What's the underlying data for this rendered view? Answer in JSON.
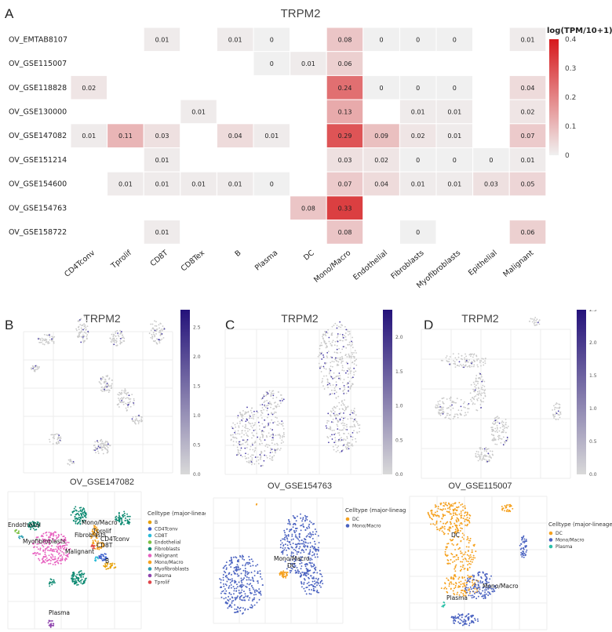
{
  "panels": {
    "A": "A",
    "B": "B",
    "C": "C",
    "D": "D"
  },
  "heatmap": {
    "title": "TRPM2",
    "colorbar_title": "log(TPM/10+1)",
    "colorbar_ticks": [
      "0.4",
      "0.3",
      "0.2",
      "0.1",
      "0"
    ],
    "colors": {
      "low": "#f0f0f0",
      "high": "#d7191c"
    }
  },
  "chart_data": {
    "type": "heatmap",
    "title": "TRPM2",
    "rows": [
      "OV_EMTAB8107",
      "OV_GSE115007",
      "OV_GSE118828",
      "OV_GSE130000",
      "OV_GSE147082",
      "OV_GSE151214",
      "OV_GSE154600",
      "OV_GSE154763",
      "OV_GSE158722"
    ],
    "columns": [
      "CD4Tconv",
      "Tprolif",
      "CD8T",
      "CD8Tex",
      "B",
      "Plasma",
      "DC",
      "Mono/Macro",
      "Endothelial",
      "Fibroblasts",
      "Myofibroblasts",
      "Epithelial",
      "Malignant"
    ],
    "values": [
      [
        null,
        null,
        0.01,
        null,
        0.01,
        0,
        null,
        0.08,
        0,
        0,
        0,
        null,
        0.01
      ],
      [
        null,
        null,
        null,
        null,
        null,
        0,
        0.01,
        0.06,
        null,
        null,
        null,
        null,
        null
      ],
      [
        0.02,
        null,
        null,
        null,
        null,
        null,
        null,
        0.24,
        0,
        0,
        0,
        null,
        0.04
      ],
      [
        null,
        null,
        null,
        0.01,
        null,
        null,
        null,
        0.13,
        null,
        0.01,
        0.01,
        null,
        0.02
      ],
      [
        0.01,
        0.11,
        0.03,
        null,
        0.04,
        0.01,
        null,
        0.29,
        0.09,
        0.02,
        0.01,
        null,
        0.07
      ],
      [
        null,
        null,
        0.01,
        null,
        null,
        null,
        null,
        0.03,
        0.02,
        0,
        0,
        0,
        0.01
      ],
      [
        null,
        0.01,
        0.01,
        0.01,
        0.01,
        0,
        null,
        0.07,
        0.04,
        0.01,
        0.01,
        0.03,
        0.05
      ],
      [
        null,
        null,
        null,
        null,
        null,
        null,
        0.08,
        0.33,
        null,
        null,
        null,
        null,
        null
      ],
      [
        null,
        null,
        0.01,
        null,
        null,
        null,
        null,
        0.08,
        null,
        0,
        null,
        null,
        0.06
      ]
    ],
    "value_labels": [
      [
        "",
        "",
        "0.01",
        "",
        "0.01",
        "0",
        "",
        "0.08",
        "0",
        "0",
        "0",
        "",
        "0.01"
      ],
      [
        "",
        "",
        "",
        "",
        "",
        "0",
        "0.01",
        "0.06",
        "",
        "",
        "",
        "",
        ""
      ],
      [
        "0.02",
        "",
        "",
        "",
        "",
        "",
        "",
        "0.24",
        "0",
        "0",
        "0",
        "",
        "0.04"
      ],
      [
        "",
        "",
        "",
        "0.01",
        "",
        "",
        "",
        "0.13",
        "",
        "0.01",
        "0.01",
        "",
        "0.02"
      ],
      [
        "0.01",
        "0.11",
        "0.03",
        "",
        "0.04",
        "0.01",
        "",
        "0.29",
        "0.09",
        "0.02",
        "0.01",
        "",
        "0.07"
      ],
      [
        "",
        "",
        "0.01",
        "",
        "",
        "",
        "",
        "0.03",
        "0.02",
        "0",
        "0",
        "0",
        "0.01"
      ],
      [
        "",
        "0.01",
        "0.01",
        "0.01",
        "0.01",
        "0",
        "",
        "0.07",
        "0.04",
        "0.01",
        "0.01",
        "0.03",
        "0.05"
      ],
      [
        "",
        "",
        "",
        "",
        "",
        "",
        "0.08",
        "0.33",
        "",
        "",
        "",
        "",
        ""
      ],
      [
        "",
        "",
        "0.01",
        "",
        "",
        "",
        "",
        "0.08",
        "",
        "0",
        "",
        "",
        "0.06"
      ]
    ],
    "zlim": [
      0,
      0.4
    ]
  },
  "umaps": [
    {
      "gene": "TRPM2",
      "dataset": "OV_GSE147082",
      "colorbar_ticks": [
        "0.0",
        "0.5",
        "1.0",
        "1.5",
        "2.0",
        "2.5"
      ],
      "legend_title": "Celltype (major-lineage)",
      "legend": [
        {
          "name": "B",
          "color": "#e69f00"
        },
        {
          "name": "CD4Tconv",
          "color": "#3a5fcd"
        },
        {
          "name": "CD8T",
          "color": "#2bbbd8"
        },
        {
          "name": "Endothelial",
          "color": "#7bc043"
        },
        {
          "name": "Fibroblasts",
          "color": "#0f8b73"
        },
        {
          "name": "Malignant",
          "color": "#e75fbf"
        },
        {
          "name": "Mono/Macro",
          "color": "#f5a11f"
        },
        {
          "name": "Myofibroblasts",
          "color": "#2b9db0"
        },
        {
          "name": "Plasma",
          "color": "#8e44ad"
        },
        {
          "name": "Tprolif",
          "color": "#e0454a"
        }
      ],
      "cluster_labels": [
        "Endothelial",
        "Fibroblasts",
        "Myofibroblasts",
        "Malignant",
        "Mono/Macro",
        "Tprolif",
        "CD4Tconv",
        "CD8T",
        "B",
        "Plasma"
      ]
    },
    {
      "gene": "TRPM2",
      "dataset": "OV_GSE154763",
      "colorbar_ticks": [
        "0.0",
        "0.5",
        "1.0",
        "1.5",
        "2.0"
      ],
      "legend_title": "Celltype (major-lineage)",
      "legend": [
        {
          "name": "DC",
          "color": "#f5a11f"
        },
        {
          "name": "Mono/Macro",
          "color": "#4a62c0"
        }
      ],
      "cluster_labels": [
        "Mono/Macro",
        "DC"
      ]
    },
    {
      "gene": "TRPM2",
      "dataset": "OV_GSE115007",
      "colorbar_ticks": [
        "0.0",
        "0.5",
        "1.0",
        "1.5",
        "2.0",
        "2.5"
      ],
      "legend_title": "Celltype (major-lineage)",
      "legend": [
        {
          "name": "DC",
          "color": "#f5a11f"
        },
        {
          "name": "Mono/Macro",
          "color": "#4a62c0"
        },
        {
          "name": "Plasma",
          "color": "#2bc0a8"
        }
      ],
      "cluster_labels": [
        "DC",
        "Plasma",
        "Mono/Macro"
      ]
    }
  ]
}
